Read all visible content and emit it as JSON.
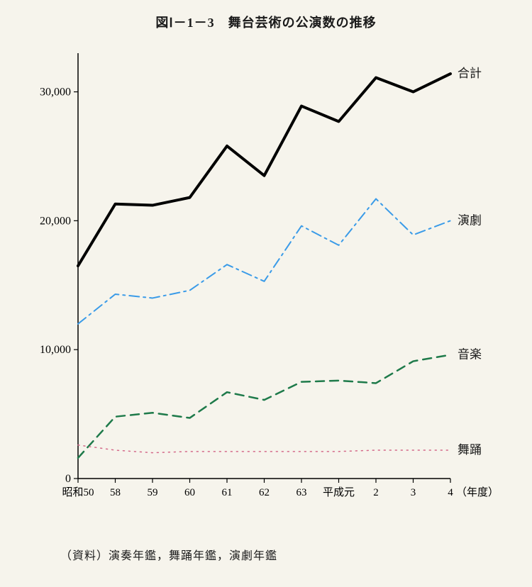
{
  "title": "図Ⅰ－1－3　舞台芸術の公演数の推移",
  "source": "（資料）演奏年鑑，舞踊年鑑，演劇年鑑",
  "chart": {
    "type": "line",
    "background_color": "#f6f4ec",
    "axis_color": "#000000",
    "axis_width": 1.5,
    "title_fontsize": 18,
    "label_fontsize": 16,
    "x_axis_label_suffix": "（年度）",
    "x_categories": [
      "昭和50",
      "58",
      "59",
      "60",
      "61",
      "62",
      "63",
      "平成元",
      "2",
      "3",
      "4"
    ],
    "y_ticks": [
      0,
      10000,
      20000,
      30000
    ],
    "y_tick_labels": [
      "0",
      "10,000",
      "20,000",
      "30,000"
    ],
    "ylim": [
      0,
      33000
    ],
    "series": [
      {
        "name": "合計",
        "label": "合計",
        "color": "#000000",
        "line_width": 4,
        "dash": "none",
        "values": [
          16500,
          21300,
          21200,
          21800,
          25800,
          23500,
          28900,
          27700,
          31100,
          30000,
          31400
        ]
      },
      {
        "name": "演劇",
        "label": "演劇",
        "color": "#3a9be8",
        "line_width": 2,
        "dash": "dash-dot",
        "values": [
          12000,
          14300,
          14000,
          14600,
          16600,
          15300,
          19600,
          18100,
          21700,
          18900,
          20000
        ]
      },
      {
        "name": "音楽",
        "label": "音楽",
        "color": "#1e7a4a",
        "line_width": 2.5,
        "dash": "dash",
        "values": [
          1600,
          4800,
          5100,
          4700,
          6700,
          6100,
          7500,
          7600,
          7400,
          9100,
          9600
        ]
      },
      {
        "name": "舞踊",
        "label": "舞踊",
        "color": "#d46a8a",
        "line_width": 1.5,
        "dash": "dot",
        "values": [
          2600,
          2200,
          2000,
          2100,
          2100,
          2100,
          2100,
          2100,
          2200,
          2200,
          2200
        ]
      }
    ]
  }
}
